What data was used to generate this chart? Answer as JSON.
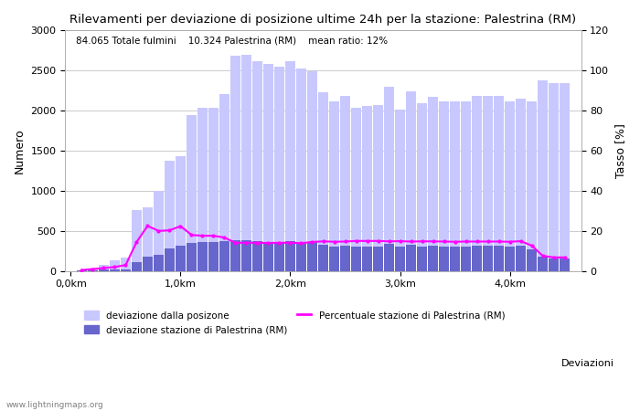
{
  "title": "Rilevamenti per deviazione di posizione ultime 24h per la stazione: Palestrina (RM)",
  "subtitle": "84.065 Totale fulmini    10.324 Palestrina (RM)    mean ratio: 12%",
  "xlabel_right": "Deviazioni",
  "ylabel_left": "Numero",
  "ylabel_right": "Tasso [%]",
  "watermark": "www.lightningmaps.org",
  "ylim_left": [
    0,
    3000
  ],
  "ylim_right": [
    0,
    120
  ],
  "yticks_left": [
    0,
    500,
    1000,
    1500,
    2000,
    2500,
    3000
  ],
  "yticks_right": [
    0,
    20,
    40,
    60,
    80,
    100,
    120
  ],
  "xtick_labels": [
    "0,0km",
    "1,0km",
    "2,0km",
    "3,0km",
    "4,0km"
  ],
  "xtick_positions": [
    0,
    10,
    20,
    30,
    40
  ],
  "bar_positions": [
    1,
    2,
    3,
    4,
    5,
    6,
    7,
    8,
    9,
    10,
    11,
    12,
    13,
    14,
    15,
    16,
    17,
    18,
    19,
    20,
    21,
    22,
    23,
    24,
    25,
    26,
    27,
    28,
    29,
    30,
    31,
    32,
    33,
    34,
    35,
    36,
    37,
    38,
    39,
    40,
    41,
    42,
    43,
    44,
    45
  ],
  "total_bars": [
    10,
    30,
    80,
    130,
    170,
    760,
    800,
    1000,
    1380,
    1430,
    1950,
    2040,
    2040,
    2210,
    2690,
    2700,
    2620,
    2580,
    2550,
    2620,
    2520,
    2490,
    2230,
    2120,
    2180,
    2040,
    2060,
    2070,
    2300,
    2010,
    2240,
    2090,
    2170,
    2110,
    2120,
    2110,
    2180,
    2180,
    2180,
    2120,
    2150,
    2120,
    2380,
    2340,
    2340
  ],
  "station_bars": [
    5,
    10,
    15,
    20,
    25,
    110,
    180,
    200,
    280,
    320,
    350,
    360,
    360,
    370,
    380,
    380,
    370,
    360,
    360,
    370,
    350,
    360,
    330,
    310,
    320,
    305,
    310,
    310,
    340,
    300,
    330,
    310,
    320,
    310,
    310,
    310,
    320,
    320,
    320,
    310,
    320,
    270,
    180,
    160,
    160
  ],
  "percentage_line": [
    0.5,
    1.0,
    1.5,
    2.0,
    3.0,
    14.5,
    22.5,
    20.0,
    20.3,
    22.4,
    18.0,
    17.6,
    17.6,
    16.7,
    14.1,
    14.1,
    14.1,
    14.0,
    14.1,
    14.1,
    13.9,
    14.5,
    14.8,
    14.6,
    14.7,
    15.0,
    15.0,
    15.0,
    14.8,
    14.9,
    14.7,
    14.8,
    14.8,
    14.7,
    14.6,
    14.7,
    14.7,
    14.7,
    14.7,
    14.6,
    14.9,
    12.7,
    7.6,
    6.8,
    6.8
  ],
  "color_total": "#c8c8ff",
  "color_station": "#6666cc",
  "color_line": "#ff00ff",
  "background": "#ffffff",
  "grid_color": "#cccccc",
  "legend_entries": [
    "deviazione dalla posizone",
    "deviazione stazione di Palestrina (RM)",
    "Percentuale stazione di Palestrina (RM)"
  ]
}
